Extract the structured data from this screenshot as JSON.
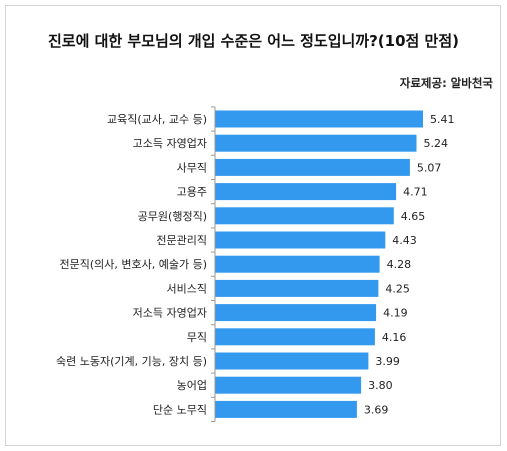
{
  "chart_data": {
    "type": "bar",
    "orientation": "horizontal",
    "title": "진로에 대한 부모님의 개입 수준은 어느 정도입니까?(10점  만점)",
    "source": "자료제공: 알바천국",
    "categories": [
      "교육직(교사, 교수 등)",
      "고소득 자영업자",
      "사무직",
      "고용주",
      "공무원(행정직)",
      "전문관리직",
      "전문직(의사, 변호사, 예술가 등)",
      "서비스직",
      "저소득 자영업자",
      "무직",
      "숙련 노동자(기계, 기능, 장치 등)",
      "농어업",
      "단순 노무직"
    ],
    "values": [
      5.41,
      5.24,
      5.07,
      4.71,
      4.65,
      4.43,
      4.28,
      4.25,
      4.19,
      4.16,
      3.99,
      3.8,
      3.69
    ],
    "value_labels": [
      "5.41",
      "5.24",
      "5.07",
      "4.71",
      "4.65",
      "4.43",
      "4.28",
      "4.25",
      "4.19",
      "4.16",
      "3.99",
      "3.80",
      "3.69"
    ],
    "bar_color": "#3399ee",
    "axis_color": "#999999",
    "grid": false,
    "legend": "none"
  }
}
